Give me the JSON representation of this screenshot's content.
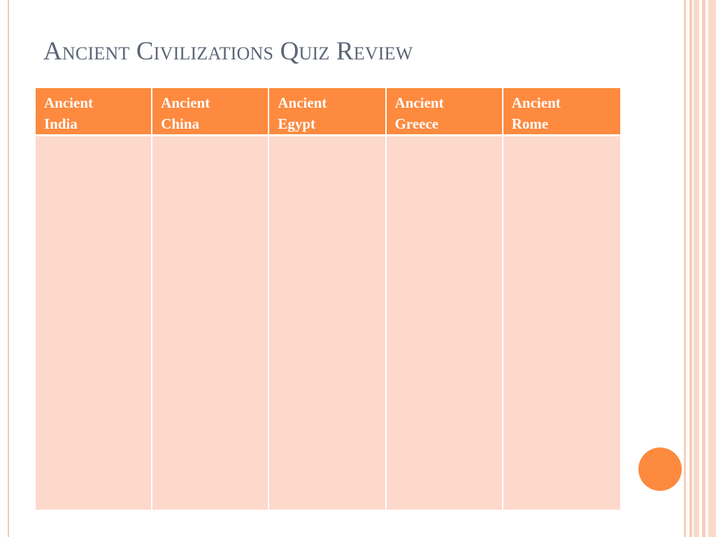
{
  "slide": {
    "title": "Ancient Civilizations Quiz Review"
  },
  "table": {
    "columns": [
      {
        "line1": "Ancient",
        "line2": "India"
      },
      {
        "line1": "Ancient",
        "line2": "China"
      },
      {
        "line1": "Ancient",
        "line2": "Egypt"
      },
      {
        "line1": "Ancient",
        "line2": "Greece"
      },
      {
        "line1": "Ancient",
        "line2": "Rome"
      }
    ],
    "rows": [
      [
        "",
        "",
        "",
        "",
        ""
      ]
    ]
  },
  "colors": {
    "accent": "#fd8a3f",
    "cell_fill": "#fdd9cc",
    "title_text": "#5b6576",
    "stripe": "#f9cdb9"
  }
}
